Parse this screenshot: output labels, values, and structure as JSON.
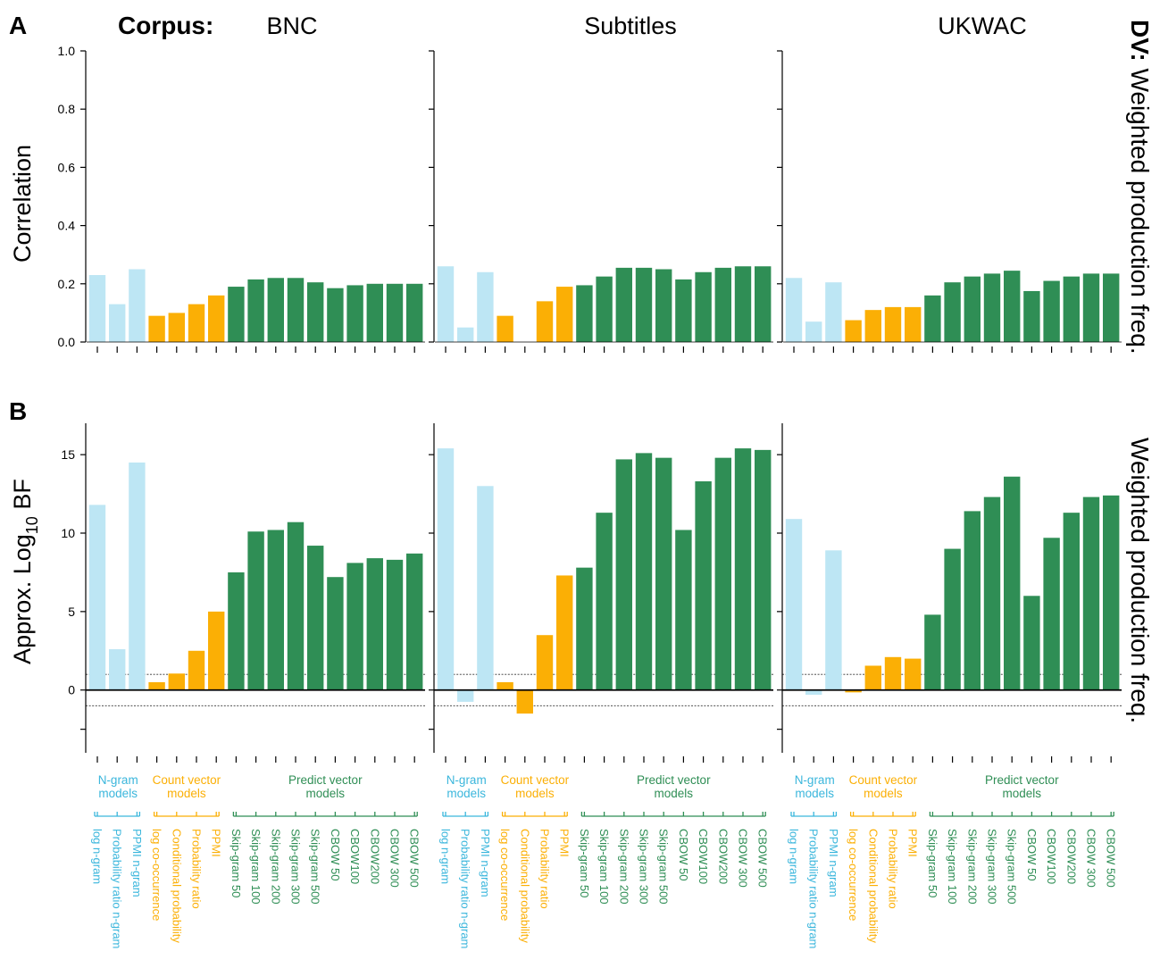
{
  "labels": {
    "panel_a": "A",
    "panel_b": "B",
    "corpus_prefix": "Corpus:",
    "dv_prefix": "DV:",
    "dv_a": "Weighted production freq.",
    "dv_b": "Weighted production freq.",
    "ylabel_a": "Correlation",
    "ylabel_b_pre": "Approx. Log",
    "ylabel_b_sub": "10",
    "ylabel_b_post": " BF"
  },
  "colors": {
    "ngram_bar": "#bde6f4",
    "ngram_text": "#3ab6dc",
    "count": "#fbaf05",
    "predict": "#2f8e55",
    "axis": "#000000"
  },
  "groups": [
    {
      "lines": [
        "N-gram",
        "models"
      ],
      "color_key": "ngram_text",
      "start": 0,
      "end": 2
    },
    {
      "lines": [
        "Count vector",
        "models"
      ],
      "color_key": "count",
      "start": 3,
      "end": 6
    },
    {
      "lines": [
        "Predict vector",
        "models"
      ],
      "color_key": "predict",
      "start": 7,
      "end": 16
    }
  ],
  "models": [
    "log n-gram",
    "Probability ratio n-gram",
    "PPMI n-gram",
    "log co-occurrence",
    "Conditional probability",
    "Probability ratio",
    "PPMI",
    "Skip-gram 50",
    "Skip-gram 100",
    "Skip-gram 200",
    "Skip-gram 300",
    "Skip-gram 500",
    "CBOW 50",
    "CBOW100",
    "CBOW200",
    "CBOW 300",
    "CBOW 500"
  ],
  "model_groups": [
    "ngram",
    "ngram",
    "ngram",
    "count",
    "count",
    "count",
    "count",
    "predict",
    "predict",
    "predict",
    "predict",
    "predict",
    "predict",
    "predict",
    "predict",
    "predict",
    "predict"
  ],
  "chart_data": [
    {
      "type": "bar",
      "panel": "A",
      "ylabel": "Correlation",
      "ylim": [
        0,
        1
      ],
      "yticks": [
        "0.0",
        "0.2",
        "0.4",
        "0.6",
        "0.8",
        "1.0"
      ],
      "ytick_values": [
        0,
        0.2,
        0.4,
        0.6,
        0.8,
        1.0
      ],
      "reference_lines": [],
      "facets": [
        {
          "corpus": "BNC",
          "values": [
            0.23,
            0.13,
            0.25,
            0.09,
            0.1,
            0.13,
            0.16,
            0.19,
            0.215,
            0.22,
            0.22,
            0.205,
            0.185,
            0.195,
            0.2,
            0.2,
            0.2
          ]
        },
        {
          "corpus": "Subtitles",
          "values": [
            0.26,
            0.05,
            0.24,
            0.09,
            0.0,
            0.14,
            0.19,
            0.195,
            0.225,
            0.255,
            0.255,
            0.25,
            0.215,
            0.24,
            0.255,
            0.26,
            0.26
          ]
        },
        {
          "corpus": "UKWAC",
          "values": [
            0.22,
            0.07,
            0.205,
            0.075,
            0.11,
            0.12,
            0.12,
            0.16,
            0.205,
            0.225,
            0.235,
            0.245,
            0.175,
            0.21,
            0.225,
            0.235,
            0.235
          ]
        }
      ]
    },
    {
      "type": "bar",
      "panel": "B",
      "ylabel": "Approx. Log10 BF",
      "ylim": [
        -4,
        17
      ],
      "yticks": [
        "0",
        "5",
        "10",
        "15"
      ],
      "ytick_values": [
        0,
        5,
        10,
        15
      ],
      "minor_tick_values": [
        -2.5
      ],
      "reference_lines": [
        1,
        -1
      ],
      "facets": [
        {
          "corpus": "BNC",
          "values": [
            11.8,
            2.6,
            14.5,
            0.5,
            1.05,
            2.5,
            5.0,
            7.5,
            10.1,
            10.2,
            10.7,
            9.2,
            7.2,
            8.1,
            8.4,
            8.3,
            8.7
          ]
        },
        {
          "corpus": "Subtitles",
          "values": [
            15.4,
            -0.75,
            13.0,
            0.5,
            -1.5,
            3.5,
            7.3,
            7.8,
            11.3,
            14.7,
            15.1,
            14.8,
            10.2,
            13.3,
            14.8,
            15.4,
            15.3
          ]
        },
        {
          "corpus": "UKWAC",
          "values": [
            10.9,
            -0.3,
            8.9,
            -0.15,
            1.55,
            2.1,
            2.0,
            4.8,
            9.0,
            11.4,
            12.3,
            13.6,
            6.0,
            9.7,
            11.3,
            12.3,
            12.4
          ]
        }
      ]
    }
  ]
}
